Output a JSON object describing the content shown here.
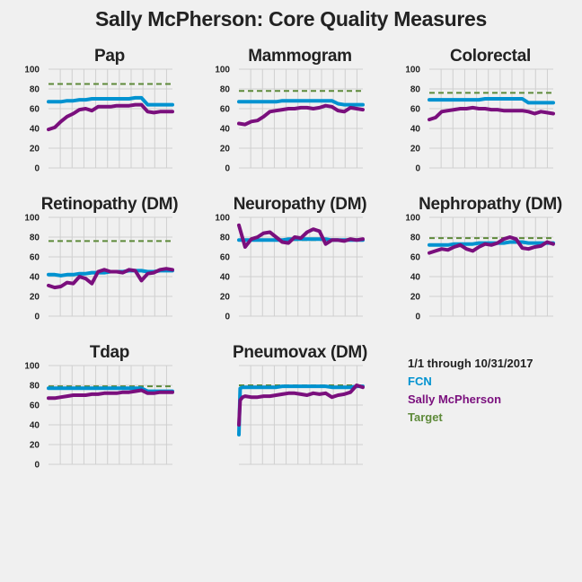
{
  "title": "Sally McPherson: Core Quality Measures",
  "legend": {
    "date_range": "1/1 through 10/31/2017",
    "fcn": "FCN",
    "person": "Sally McPherson",
    "target": "Target"
  },
  "colors": {
    "fcn": "#0092d0",
    "person": "#7a0f7d",
    "target": "#5e8a3a",
    "grid": "#cfcfcf"
  },
  "chart_data": [
    {
      "type": "line",
      "title": "Pap",
      "ylim": [
        0,
        100
      ],
      "yticks": [
        "0",
        "20",
        "40",
        "60",
        "80",
        "100"
      ],
      "x": [
        0,
        0.05,
        0.1,
        0.15,
        0.2,
        0.25,
        0.3,
        0.35,
        0.4,
        0.45,
        0.5,
        0.55,
        0.6,
        0.65,
        0.7,
        0.75,
        0.8,
        0.85,
        0.9,
        0.95,
        1
      ],
      "target": 85,
      "series": [
        {
          "key": "fcn",
          "values": [
            67,
            67,
            67,
            68,
            68,
            69,
            69,
            70,
            70,
            70,
            70,
            70,
            70,
            70,
            71,
            71,
            64,
            64,
            64,
            64,
            64
          ]
        },
        {
          "key": "person",
          "values": [
            39,
            41,
            47,
            52,
            55,
            59,
            60,
            58,
            62,
            62,
            62,
            63,
            63,
            63,
            64,
            64,
            57,
            56,
            57,
            57,
            57
          ]
        }
      ]
    },
    {
      "type": "line",
      "title": "Mammogram",
      "ylim": [
        0,
        100
      ],
      "yticks": [
        "0",
        "20",
        "40",
        "60",
        "80",
        "100"
      ],
      "x": [
        0,
        0.05,
        0.1,
        0.15,
        0.2,
        0.25,
        0.3,
        0.35,
        0.4,
        0.45,
        0.5,
        0.55,
        0.6,
        0.65,
        0.7,
        0.75,
        0.8,
        0.85,
        0.9,
        0.95,
        1
      ],
      "target": 78,
      "series": [
        {
          "key": "fcn",
          "values": [
            67,
            67,
            67,
            67,
            67,
            67,
            67,
            68,
            68,
            68,
            68,
            68,
            68,
            68,
            68,
            68,
            65,
            64,
            64,
            64,
            64
          ]
        },
        {
          "key": "person",
          "values": [
            45,
            44,
            47,
            48,
            52,
            57,
            58,
            59,
            60,
            60,
            61,
            61,
            60,
            61,
            63,
            62,
            58,
            57,
            61,
            60,
            59
          ]
        }
      ]
    },
    {
      "type": "line",
      "title": "Colorectal",
      "ylim": [
        0,
        100
      ],
      "yticks": [
        "0",
        "20",
        "40",
        "60",
        "80",
        "100"
      ],
      "x": [
        0,
        0.05,
        0.1,
        0.15,
        0.2,
        0.25,
        0.3,
        0.35,
        0.4,
        0.45,
        0.5,
        0.55,
        0.6,
        0.65,
        0.7,
        0.75,
        0.8,
        0.85,
        0.9,
        0.95,
        1
      ],
      "target": 76,
      "series": [
        {
          "key": "fcn",
          "values": [
            69,
            69,
            69,
            69,
            69,
            69,
            69,
            69,
            69,
            70,
            70,
            70,
            70,
            70,
            70,
            70,
            66,
            66,
            66,
            66,
            66
          ]
        },
        {
          "key": "person",
          "values": [
            49,
            51,
            57,
            58,
            59,
            60,
            60,
            61,
            60,
            60,
            59,
            59,
            58,
            58,
            58,
            58,
            57,
            55,
            57,
            56,
            55
          ]
        }
      ]
    },
    {
      "type": "line",
      "title": "Retinopathy (DM)",
      "ylim": [
        0,
        100
      ],
      "yticks": [
        "0",
        "20",
        "40",
        "60",
        "80",
        "100"
      ],
      "x": [
        0,
        0.05,
        0.1,
        0.15,
        0.2,
        0.25,
        0.3,
        0.35,
        0.4,
        0.45,
        0.5,
        0.55,
        0.6,
        0.65,
        0.7,
        0.75,
        0.8,
        0.85,
        0.9,
        0.95,
        1
      ],
      "target": 76,
      "series": [
        {
          "key": "fcn",
          "values": [
            42,
            42,
            41,
            42,
            42,
            43,
            43,
            44,
            44,
            44,
            45,
            45,
            45,
            46,
            46,
            46,
            45,
            45,
            46,
            46,
            46
          ]
        },
        {
          "key": "person",
          "values": [
            31,
            29,
            30,
            34,
            33,
            40,
            38,
            33,
            45,
            47,
            45,
            45,
            44,
            47,
            46,
            36,
            43,
            44,
            47,
            48,
            47
          ]
        }
      ]
    },
    {
      "type": "line",
      "title": "Neuropathy (DM)",
      "ylim": [
        0,
        100
      ],
      "yticks": [
        "0",
        "20",
        "40",
        "60",
        "80",
        "100"
      ],
      "x": [
        0,
        0.05,
        0.1,
        0.15,
        0.2,
        0.25,
        0.3,
        0.35,
        0.4,
        0.45,
        0.5,
        0.55,
        0.6,
        0.65,
        0.7,
        0.75,
        0.8,
        0.85,
        0.9,
        0.95,
        1
      ],
      "target": 77,
      "series": [
        {
          "key": "fcn",
          "values": [
            77,
            77,
            77,
            77,
            77,
            77,
            77,
            77,
            78,
            78,
            78,
            78,
            78,
            78,
            78,
            77,
            77,
            77,
            77,
            77,
            77
          ]
        },
        {
          "key": "person",
          "values": [
            92,
            70,
            78,
            80,
            84,
            85,
            80,
            75,
            74,
            80,
            79,
            85,
            88,
            86,
            73,
            77,
            77,
            76,
            78,
            77,
            78
          ]
        }
      ]
    },
    {
      "type": "line",
      "title": "Nephropathy (DM)",
      "ylim": [
        0,
        100
      ],
      "yticks": [
        "0",
        "20",
        "40",
        "60",
        "80",
        "100"
      ],
      "x": [
        0,
        0.05,
        0.1,
        0.15,
        0.2,
        0.25,
        0.3,
        0.35,
        0.4,
        0.45,
        0.5,
        0.55,
        0.6,
        0.65,
        0.7,
        0.75,
        0.8,
        0.85,
        0.9,
        0.95,
        1
      ],
      "target": 79,
      "series": [
        {
          "key": "fcn",
          "values": [
            72,
            72,
            72,
            72,
            73,
            73,
            73,
            73,
            74,
            74,
            74,
            74,
            74,
            75,
            75,
            75,
            74,
            74,
            74,
            74,
            74
          ]
        },
        {
          "key": "person",
          "values": [
            64,
            66,
            68,
            67,
            70,
            72,
            68,
            66,
            70,
            73,
            72,
            74,
            78,
            80,
            78,
            69,
            68,
            70,
            71,
            75,
            73
          ]
        }
      ]
    },
    {
      "type": "line",
      "title": "Tdap",
      "ylim": [
        0,
        100
      ],
      "yticks": [
        "0",
        "20",
        "40",
        "60",
        "80",
        "100"
      ],
      "x": [
        0,
        0.05,
        0.1,
        0.15,
        0.2,
        0.25,
        0.3,
        0.35,
        0.4,
        0.45,
        0.5,
        0.55,
        0.6,
        0.65,
        0.7,
        0.75,
        0.8,
        0.85,
        0.9,
        0.95,
        1
      ],
      "target": 79,
      "series": [
        {
          "key": "fcn",
          "values": [
            77,
            77,
            77,
            77,
            77,
            77,
            77,
            77,
            77,
            77,
            77,
            77,
            77,
            77,
            77,
            77,
            74,
            74,
            74,
            74,
            74
          ]
        },
        {
          "key": "person",
          "values": [
            67,
            67,
            68,
            69,
            70,
            70,
            70,
            71,
            71,
            72,
            72,
            72,
            73,
            73,
            74,
            75,
            72,
            72,
            73,
            73,
            73
          ]
        }
      ]
    },
    {
      "type": "line",
      "title": "Pneumovax (DM)",
      "ylim": [
        0,
        100
      ],
      "yticks": [],
      "x": [
        0,
        0.01,
        0.03,
        0.05,
        0.1,
        0.15,
        0.2,
        0.25,
        0.3,
        0.35,
        0.4,
        0.45,
        0.5,
        0.55,
        0.6,
        0.65,
        0.7,
        0.75,
        0.8,
        0.85,
        0.9,
        0.95,
        1
      ],
      "target": 80,
      "series": [
        {
          "key": "fcn",
          "values": [
            30,
            77,
            78,
            78,
            78,
            78,
            78,
            78,
            78,
            79,
            79,
            79,
            79,
            79,
            79,
            79,
            79,
            78,
            78,
            78,
            78,
            79,
            79
          ]
        },
        {
          "key": "person",
          "values": [
            40,
            65,
            68,
            69,
            68,
            68,
            69,
            69,
            70,
            71,
            72,
            72,
            71,
            70,
            72,
            71,
            72,
            68,
            70,
            71,
            73,
            80,
            78
          ]
        }
      ]
    }
  ]
}
